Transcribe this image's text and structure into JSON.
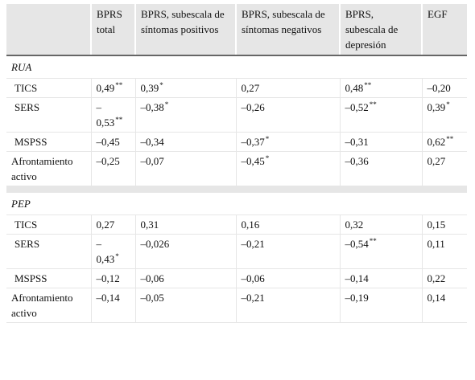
{
  "table": {
    "headers": [
      "",
      "BPRS total",
      "BPRS, subescala de síntomas positivos",
      "BPRS, subescala de síntomas negativos",
      "BPRS, subescala de depresión",
      "EGF"
    ],
    "sections": [
      {
        "name": "RUA",
        "rows": [
          {
            "label": "TICS",
            "cells": [
              {
                "v": "0,49",
                "s": "**"
              },
              {
                "v": "0,39",
                "s": "*"
              },
              {
                "v": "0,27",
                "s": ""
              },
              {
                "v": "0,48",
                "s": "**"
              },
              {
                "v": "–0,20",
                "s": ""
              }
            ]
          },
          {
            "label": "SERS",
            "cells": [
              {
                "v": "–\n0,53",
                "s": "**"
              },
              {
                "v": "–0,38",
                "s": "*"
              },
              {
                "v": "–0,26",
                "s": ""
              },
              {
                "v": "–0,52",
                "s": "**"
              },
              {
                "v": "0,39",
                "s": "*"
              }
            ]
          },
          {
            "label": "MSPSS",
            "cells": [
              {
                "v": "–0,45",
                "s": ""
              },
              {
                "v": "–0,34",
                "s": ""
              },
              {
                "v": "–0,37",
                "s": "*"
              },
              {
                "v": "–0,31",
                "s": ""
              },
              {
                "v": "0,62",
                "s": "**"
              }
            ]
          },
          {
            "label": "Afrontamiento activo",
            "cells": [
              {
                "v": "–0,25",
                "s": ""
              },
              {
                "v": "–0,07",
                "s": ""
              },
              {
                "v": "–0,45",
                "s": "*"
              },
              {
                "v": "–0,36",
                "s": ""
              },
              {
                "v": "0,27",
                "s": ""
              }
            ]
          }
        ]
      },
      {
        "name": "PEP",
        "rows": [
          {
            "label": "TICS",
            "cells": [
              {
                "v": "0,27",
                "s": ""
              },
              {
                "v": "0,31",
                "s": ""
              },
              {
                "v": "0,16",
                "s": ""
              },
              {
                "v": "0,32",
                "s": ""
              },
              {
                "v": "0,15",
                "s": ""
              }
            ]
          },
          {
            "label": "SERS",
            "cells": [
              {
                "v": "–\n0,43",
                "s": "*"
              },
              {
                "v": "–0,026",
                "s": ""
              },
              {
                "v": "–0,21",
                "s": ""
              },
              {
                "v": "–0,54",
                "s": "**"
              },
              {
                "v": "0,11",
                "s": ""
              }
            ]
          },
          {
            "label": "MSPSS",
            "cells": [
              {
                "v": "–0,12",
                "s": ""
              },
              {
                "v": "–0,06",
                "s": ""
              },
              {
                "v": "–0,06",
                "s": ""
              },
              {
                "v": "–0,14",
                "s": ""
              },
              {
                "v": "0,22",
                "s": ""
              }
            ]
          },
          {
            "label": "Afrontamiento activo",
            "cells": [
              {
                "v": "–0,14",
                "s": ""
              },
              {
                "v": "–0,05",
                "s": ""
              },
              {
                "v": "–0,21",
                "s": ""
              },
              {
                "v": "–0,19",
                "s": ""
              },
              {
                "v": "0,14",
                "s": ""
              }
            ]
          }
        ]
      }
    ]
  }
}
